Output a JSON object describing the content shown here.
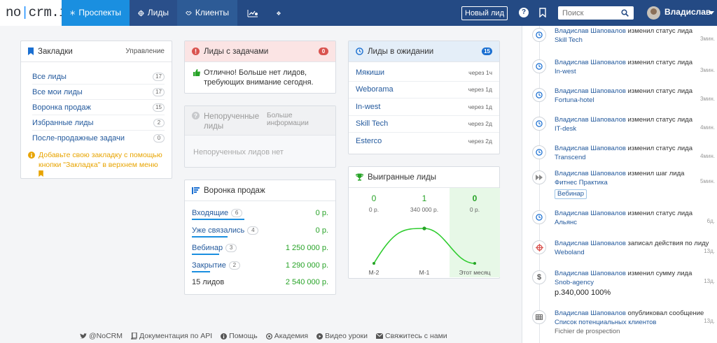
{
  "brand": {
    "logo_left": "no",
    "logo_right": "crm.io"
  },
  "nav": {
    "prospects": "Проспекты",
    "leads": "Лиды",
    "clients": "Клиенты",
    "new_lead": "Новый лид",
    "search_placeholder": "Поиск",
    "user": "Владислав"
  },
  "bookmarks": {
    "title": "Закладки",
    "manage": "Управление",
    "items": [
      {
        "label": "Все лиды",
        "count": "17"
      },
      {
        "label": "Все мои лиды",
        "count": "17"
      },
      {
        "label": "Воронка продаж",
        "count": "15"
      },
      {
        "label": "Избранные лиды",
        "count": "2"
      },
      {
        "label": "После-продажные задачи",
        "count": "0"
      }
    ],
    "note_part1": "Добавьте свою закладку с помощью",
    "note_part2": "кнопки \"Закладка\" в верхнем меню"
  },
  "tasks": {
    "title": "Лиды с задачами",
    "count": "0",
    "text": "Отлично! Больше нет лидов, требующих внимание сегодня."
  },
  "unassigned": {
    "title": "Непорученные лиды",
    "more": "Больше информации",
    "empty": "Непорученных лидов нет"
  },
  "funnel": {
    "title": "Воронка продаж",
    "rows": [
      {
        "label": "Входящие",
        "count": "6",
        "amount": "0 р.",
        "bar_fraction": 0.38
      },
      {
        "label": "Уже связались",
        "count": "4",
        "amount": "0 р.",
        "bar_fraction": 0.26
      },
      {
        "label": "Вебинар",
        "count": "3",
        "amount": "1 250 000 р.",
        "bar_fraction": 0.2
      },
      {
        "label": "Закрытие",
        "count": "2",
        "amount": "1 290 000 р.",
        "bar_fraction": 0.13
      }
    ],
    "total_label": "15 лидов",
    "total_amount": "2 540 000 р."
  },
  "waiting": {
    "title": "Лиды в ожидании",
    "count": "15",
    "items": [
      {
        "name": "Мякиши",
        "when": "через 1ч"
      },
      {
        "name": "Weborama",
        "when": "через 1д"
      },
      {
        "name": "In-west",
        "when": "через 1д"
      },
      {
        "name": "Skill Tech",
        "when": "через 2д"
      },
      {
        "name": "Esterco",
        "when": "через 2д"
      }
    ]
  },
  "won": {
    "title": "Выигранные лиды",
    "columns": [
      {
        "count": "0",
        "amount": "0 р.",
        "label": "M-2"
      },
      {
        "count": "1",
        "amount": "340 000 р.",
        "label": "M-1"
      },
      {
        "count": "0",
        "amount": "0 р.",
        "label": "Этот месяц"
      }
    ]
  },
  "chart_data": {
    "type": "line",
    "categories": [
      "M-2",
      "M-1",
      "Этот месяц"
    ],
    "values": [
      0,
      1,
      0
    ],
    "title": "Выигранные лиды",
    "xlabel": "",
    "ylabel": ""
  },
  "feed": {
    "items": [
      {
        "icon": "clock-icon",
        "who": "Владислав Шаповалов",
        "action": " изменил статус лида",
        "target": "Skill Tech",
        "time": "3мин."
      },
      {
        "icon": "clock-icon",
        "who": "Владислав Шаповалов",
        "action": " изменил статус лида",
        "target": "In-west",
        "time": "3мин."
      },
      {
        "icon": "clock-icon",
        "who": "Владислав Шаповалов",
        "action": " изменил статус лида",
        "target": "Fortuna-hotel",
        "time": "3мин."
      },
      {
        "icon": "clock-icon",
        "who": "Владислав Шаповалов",
        "action": " изменил статус лида",
        "target": "IT-desk",
        "time": "4мин."
      },
      {
        "icon": "clock-icon",
        "who": "Владислав Шаповалов",
        "action": " изменил статус лида",
        "target": "Transcend",
        "time": "4мин."
      },
      {
        "icon": "forward-icon",
        "who": "Владислав Шаповалов",
        "action": " изменил шаг лида",
        "target": "Фитнес Практика",
        "time": "5мин.",
        "tag": "Вебинар"
      },
      {
        "icon": "clock-icon",
        "who": "Владислав Шаповалов",
        "action": " изменил статус лида",
        "target": "Альянс",
        "time": "6д."
      },
      {
        "icon": "crosshair-icon",
        "who": "Владислав Шаповалов",
        "action": " записал действия по лиду",
        "target": "Weboland",
        "time": "13д."
      },
      {
        "icon": "dollar-icon",
        "who": "Владислав Шаповалов",
        "action": " изменил сумму лида",
        "target": "Snob-agency",
        "time": "13д.",
        "extra": "р.340,000 100%"
      },
      {
        "icon": "table-icon",
        "who": "Владислав Шаповалов",
        "action": " опубликовал сообщение",
        "target": "Список потенциальных клиентов",
        "time": "13д.",
        "extra": "Fichier de prospection"
      }
    ]
  },
  "footer": {
    "twitter": "@NoCRM",
    "api": "Документация по API",
    "help": "Помощь",
    "academy": "Академия",
    "videos": "Видео уроки",
    "contact": "Свяжитесь с нами"
  },
  "colors": {
    "nav_dark": "#244a84",
    "nav_active": "#1a8fe0",
    "link": "#245a9d",
    "green": "#27a327",
    "red": "#d9534f",
    "warning": "#e8a400"
  }
}
